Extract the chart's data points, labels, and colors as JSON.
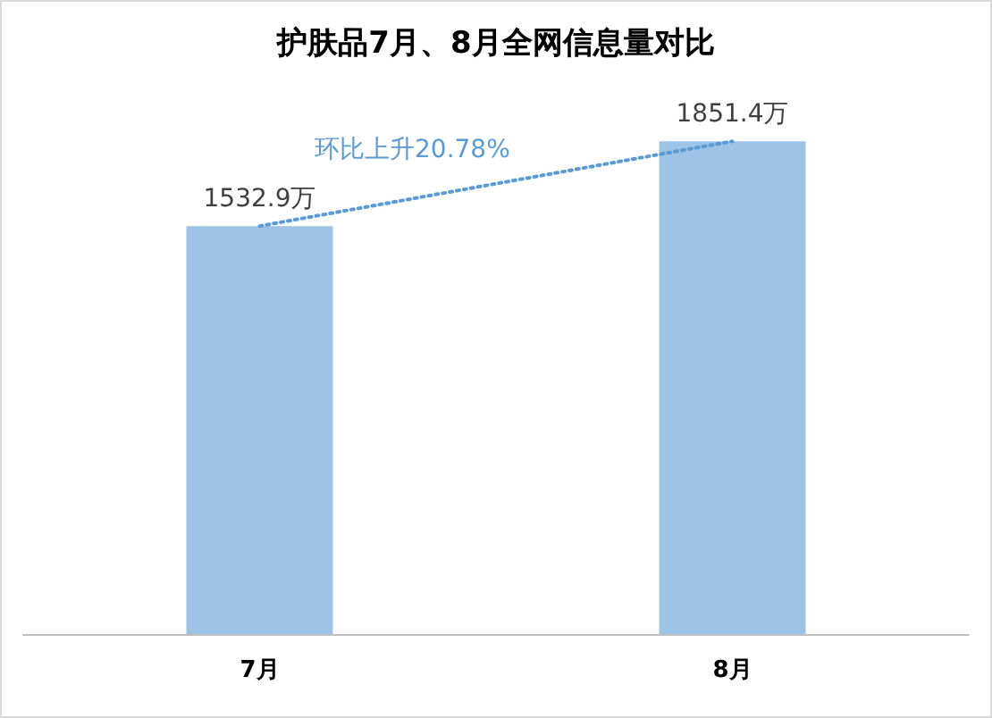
{
  "chart_data": {
    "type": "bar",
    "title": "护肤品7月、8月全网信息量对比",
    "categories": [
      "7月",
      "8月"
    ],
    "series": [
      {
        "color": "#9dc3e6",
        "values": [
          1532.9,
          1851.4
        ],
        "value_labels": [
          "1532.9万",
          "1851.4万"
        ]
      },
      {
        "type": "line",
        "color": "#5b9bd5",
        "x": [
          "7月",
          "8月"
        ],
        "values": [
          1532.9,
          1851.4
        ],
        "line_style": "dotted",
        "marker": "none"
      }
    ],
    "annotations": [
      "环比上升20.78%"
    ],
    "grid": false
  }
}
